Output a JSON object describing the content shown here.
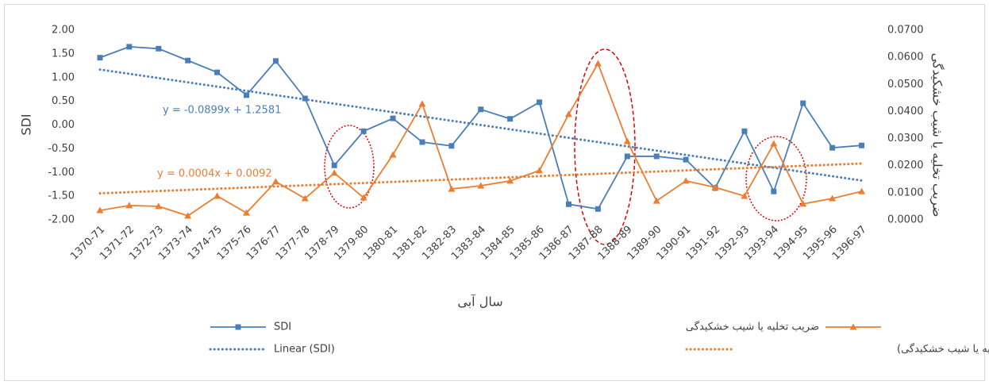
{
  "chart_data": {
    "type": "line",
    "y_title": "SDI",
    "y2_title": "ضریب تخلیه یا شیب خشکیدگی",
    "x_title": "سال آبی",
    "categories": [
      "1370-71",
      "1371-72",
      "1372-73",
      "1373-74",
      "1374-75",
      "1375-76",
      "1376-77",
      "1377-78",
      "1378-79",
      "1379-80",
      "1380-81",
      "1381-82",
      "1382-83",
      "1383-84",
      "1384-85",
      "1385-86",
      "1386-87",
      "1387-88",
      "1388-89",
      "1389-90",
      "1390-91",
      "1391-92",
      "1392-93",
      "1393-94",
      "1394-95",
      "1395-96",
      "1396-97"
    ],
    "ylim": [
      -2,
      2
    ],
    "yticks": [
      {
        "value": -2,
        "label": "-2.00"
      },
      {
        "value": -1.5,
        "label": "-1.50"
      },
      {
        "value": -1,
        "label": "-1.00"
      },
      {
        "value": -0.5,
        "label": "-0.50"
      },
      {
        "value": 0,
        "label": "0.00"
      },
      {
        "value": 0.5,
        "label": "0.50"
      },
      {
        "value": 1,
        "label": "1.00"
      },
      {
        "value": 1.5,
        "label": "1.50"
      },
      {
        "value": 2,
        "label": "2.00"
      }
    ],
    "y2lim": [
      0,
      0.07
    ],
    "y2ticks": [
      {
        "value": 0,
        "label": "0.0000"
      },
      {
        "value": 0.01,
        "label": "0.0100"
      },
      {
        "value": 0.02,
        "label": "0.0200"
      },
      {
        "value": 0.03,
        "label": "0.0300"
      },
      {
        "value": 0.04,
        "label": "0.0400"
      },
      {
        "value": 0.05,
        "label": "0.0500"
      },
      {
        "value": 0.06,
        "label": "0.0600"
      },
      {
        "value": 0.07,
        "label": "0.0700"
      }
    ],
    "grid": false,
    "series": [
      {
        "name": "SDI",
        "color": "#4a7ebb",
        "marker": "square",
        "axis": "y",
        "values": [
          1.42,
          1.65,
          1.61,
          1.36,
          1.11,
          0.63,
          1.35,
          0.56,
          -0.85,
          -0.13,
          0.14,
          -0.36,
          -0.44,
          0.33,
          0.13,
          0.48,
          -1.67,
          -1.77,
          -0.66,
          -0.66,
          -0.73,
          -1.33,
          -0.13,
          -1.4,
          0.46,
          -0.48,
          -0.43
        ],
        "trendline": {
          "name": "Linear (SDI)",
          "equation": "y = -0.0899x + 1.2581",
          "values": [
            1.17,
            -1.17
          ]
        }
      },
      {
        "name": "ضریب تخلیه یا شیب خشکیدگی",
        "color": "#ed7d31",
        "marker": "triangle",
        "axis": "y2",
        "values": [
          0.0035,
          0.0053,
          0.005,
          0.0015,
          0.0088,
          0.0026,
          0.0141,
          0.0079,
          0.0173,
          0.0082,
          0.024,
          0.0428,
          0.0114,
          0.0126,
          0.0144,
          0.0182,
          0.039,
          0.0577,
          0.029,
          0.007,
          0.0144,
          0.012,
          0.0088,
          0.0281,
          0.0059,
          0.0079,
          0.0105
        ],
        "trendline": {
          "name": "Linear (ضریب تخلیه یا شیب خشکیدگی)",
          "equation": "y = 0.0004x + 0.0092",
          "values": [
            0.0098,
            0.0208
          ]
        }
      }
    ]
  }
}
